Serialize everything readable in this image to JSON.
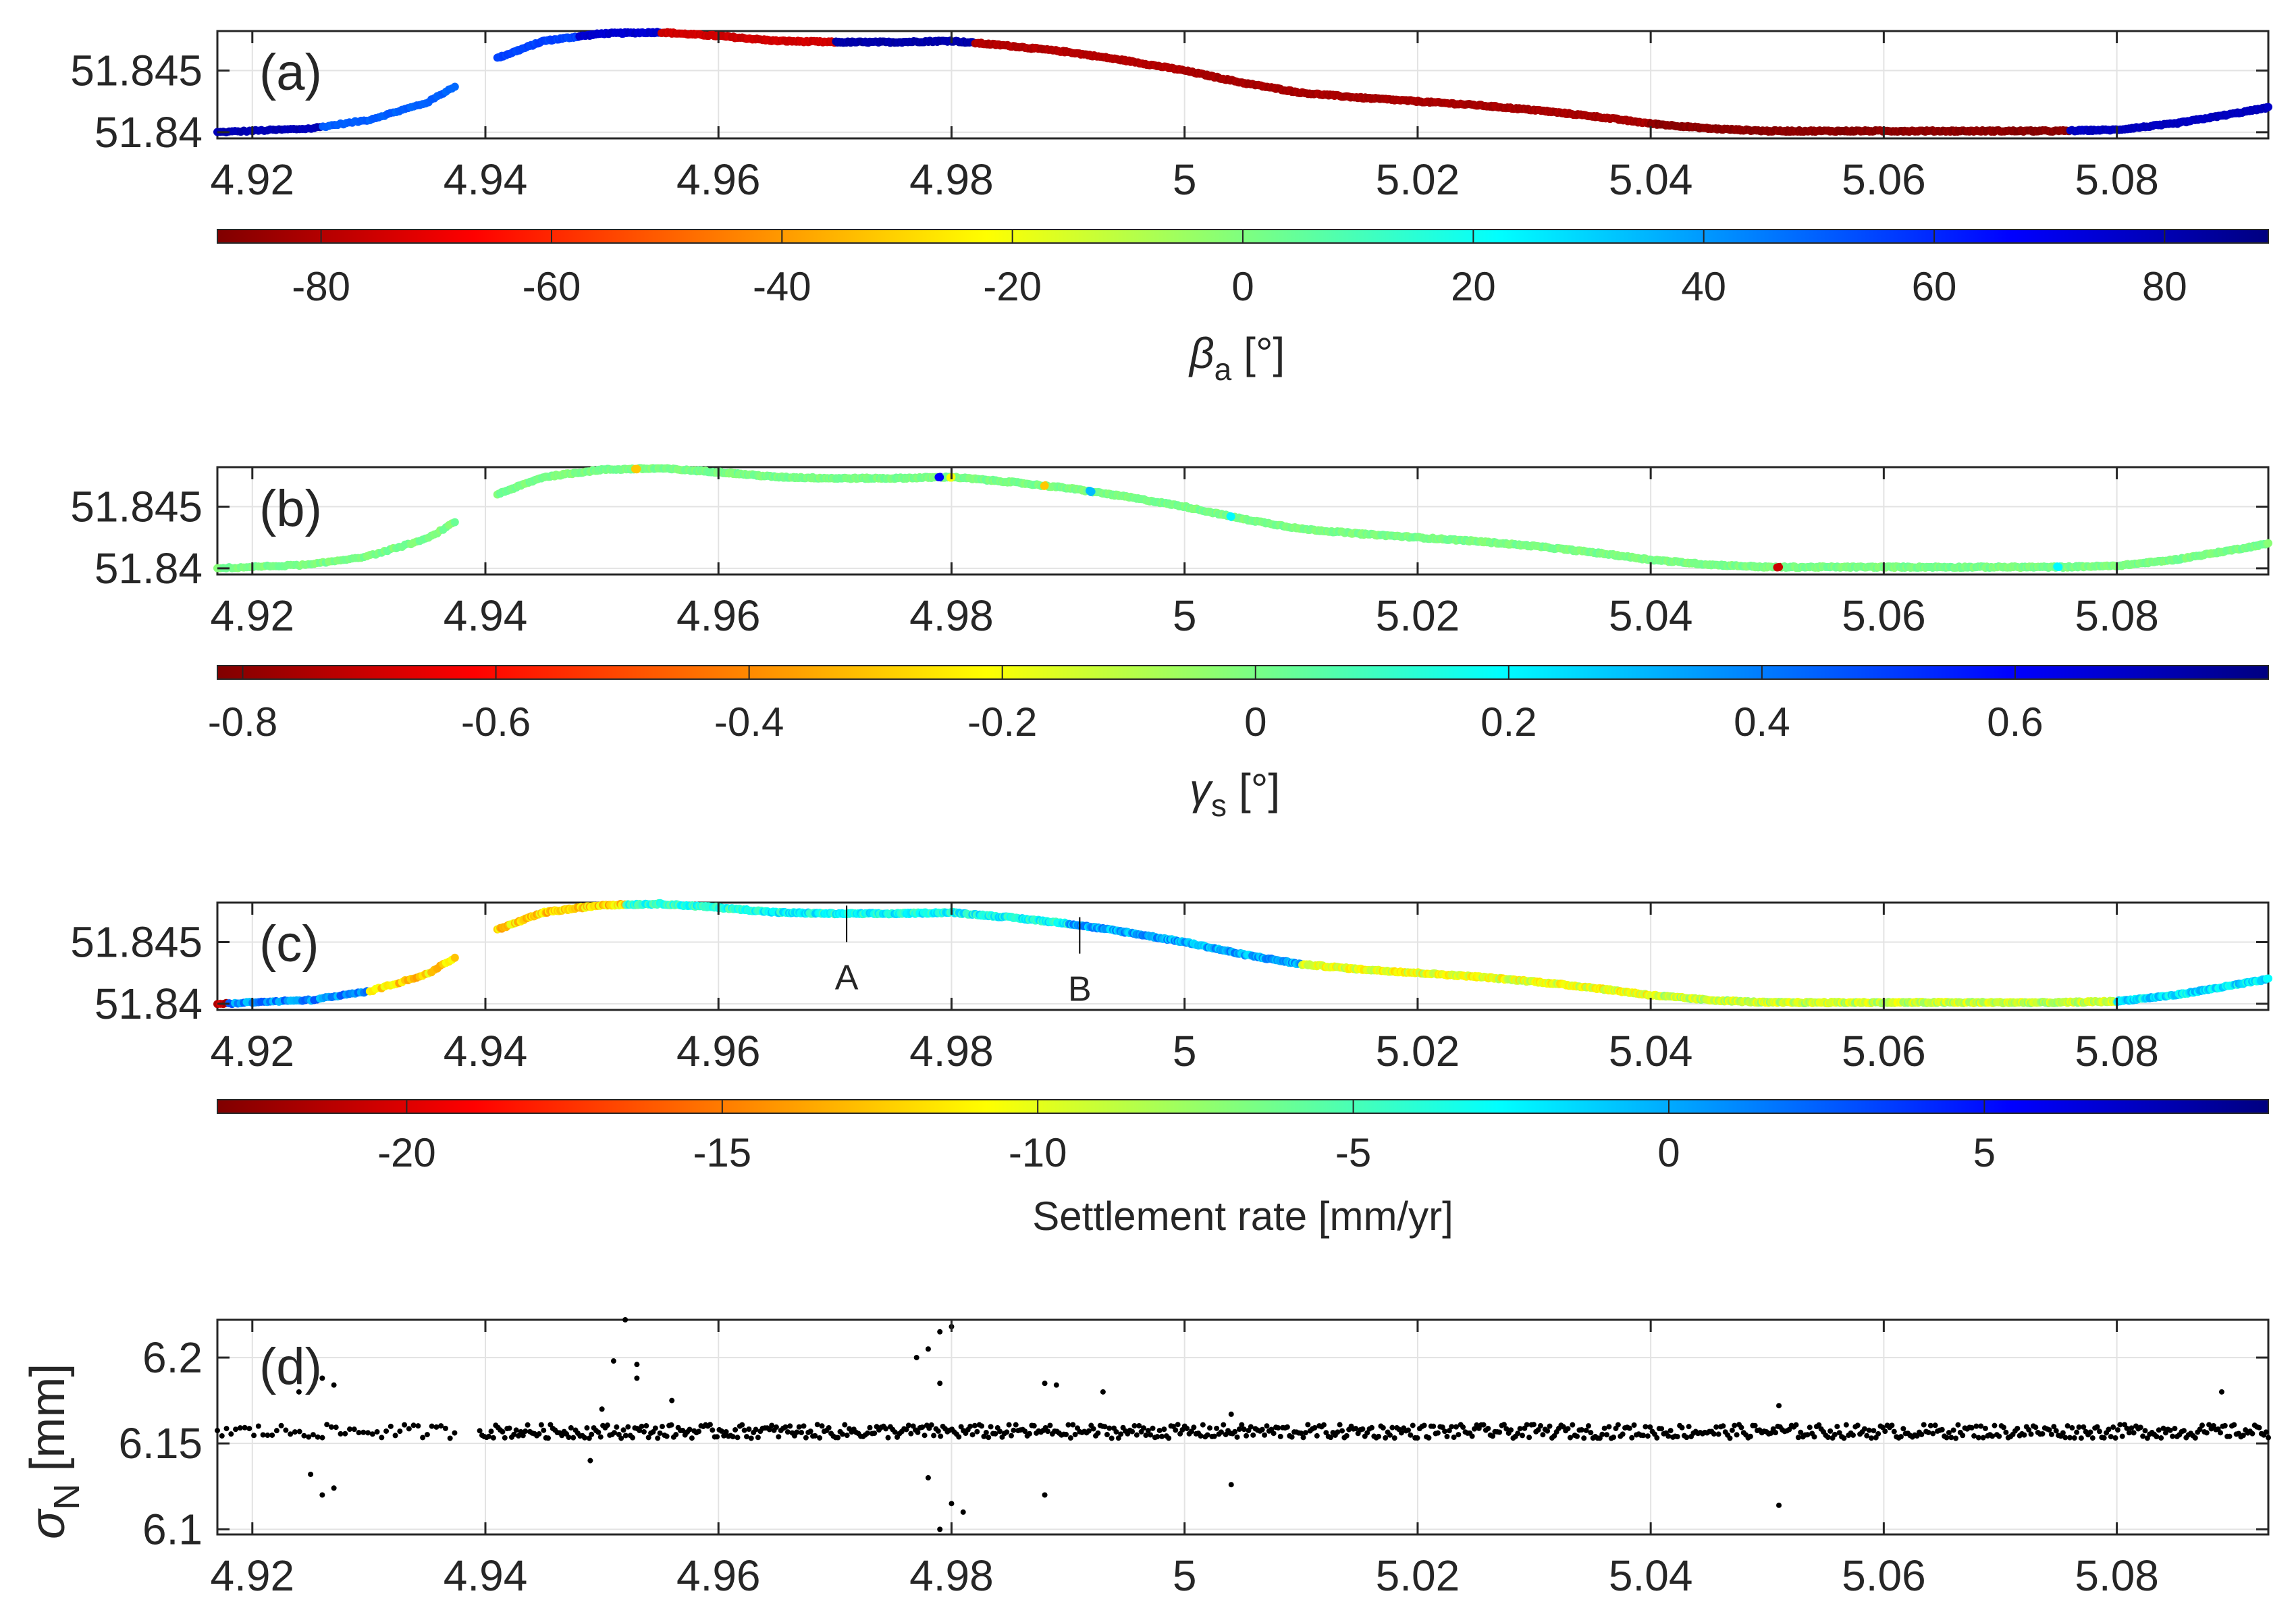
{
  "chart_data": [
    {
      "type": "scatter",
      "panel_label": "(a)",
      "xlim": [
        4.917,
        5.093
      ],
      "ylim": [
        51.8395,
        51.8482
      ],
      "x_ticks": [
        "4.92",
        "4.94",
        "4.96",
        "4.98",
        "5",
        "5.02",
        "5.04",
        "5.06",
        "5.08"
      ],
      "y_ticks": [
        "51.845",
        "51.84"
      ],
      "y_tick_values": [
        51.845,
        51.84
      ],
      "x_tick_values": [
        4.92,
        4.94,
        4.96,
        4.98,
        5.0,
        5.02,
        5.04,
        5.06,
        5.08
      ],
      "colorbar": {
        "label": "β",
        "label_sub": "a",
        "label_unit": "[°]",
        "range": [
          -89,
          89
        ],
        "ticks": [
          "-80",
          "-60",
          "-40",
          "-20",
          "0",
          "20",
          "40",
          "60",
          "80"
        ],
        "tick_values": [
          -80,
          -60,
          -40,
          -20,
          0,
          20,
          40,
          60,
          80
        ],
        "colormap": "jet-reversed"
      },
      "track": {
        "x": [
          4.917,
          4.925,
          4.93,
          4.935,
          4.9375,
          4.941,
          4.945,
          4.95,
          4.955,
          4.96,
          4.965,
          4.97,
          4.975,
          4.98,
          4.985,
          4.99,
          4.995,
          5.0,
          5.005,
          5.01,
          5.015,
          5.02,
          5.025,
          5.03,
          5.035,
          5.04,
          5.045,
          5.05,
          5.055,
          5.06,
          5.065,
          5.07,
          5.075,
          5.08,
          5.085,
          5.09,
          5.093
        ],
        "y": [
          51.84,
          51.8403,
          51.841,
          51.8424,
          51.8438,
          51.846,
          51.8474,
          51.848,
          51.8481,
          51.8478,
          51.8474,
          51.8473,
          51.8473,
          51.8474,
          51.847,
          51.8465,
          51.8458,
          51.845,
          51.844,
          51.8432,
          51.8428,
          51.8425,
          51.8422,
          51.8418,
          51.8413,
          51.8407,
          51.8403,
          51.8401,
          51.8401,
          51.8401,
          51.8401,
          51.8401,
          51.8401,
          51.8402,
          51.8407,
          51.8415,
          51.842
        ],
        "gap": [
          4.9375,
          4.941
        ]
      },
      "color_segments": [
        {
          "x_from": 4.917,
          "x_to": 4.926,
          "value": 80
        },
        {
          "x_from": 4.926,
          "x_to": 4.9375,
          "value": 50
        },
        {
          "x_from": 4.941,
          "x_to": 4.948,
          "value": 55
        },
        {
          "x_from": 4.948,
          "x_to": 4.955,
          "value": 75
        },
        {
          "x_from": 4.955,
          "x_to": 4.97,
          "value": -75
        },
        {
          "x_from": 4.97,
          "x_to": 4.982,
          "value": 82
        },
        {
          "x_from": 4.982,
          "x_to": 5.0,
          "value": -80
        },
        {
          "x_from": 5.0,
          "x_to": 5.04,
          "value": -82
        },
        {
          "x_from": 5.04,
          "x_to": 5.076,
          "value": -87
        },
        {
          "x_from": 5.076,
          "x_to": 5.093,
          "value": 78
        }
      ]
    },
    {
      "type": "scatter",
      "panel_label": "(b)",
      "xlim": [
        4.917,
        5.093
      ],
      "ylim": [
        51.8395,
        51.8482
      ],
      "x_ticks": [
        "4.92",
        "4.94",
        "4.96",
        "4.98",
        "5",
        "5.02",
        "5.04",
        "5.06",
        "5.08"
      ],
      "y_ticks": [
        "51.845",
        "51.84"
      ],
      "y_tick_values": [
        51.845,
        51.84
      ],
      "x_tick_values": [
        4.92,
        4.94,
        4.96,
        4.98,
        5.0,
        5.02,
        5.04,
        5.06,
        5.08
      ],
      "colorbar": {
        "label": "γ",
        "label_sub": "s",
        "label_unit": "[°]",
        "range": [
          -0.82,
          0.8
        ],
        "ticks": [
          "-0.8",
          "-0.6",
          "-0.4",
          "-0.2",
          "0",
          "0.2",
          "0.4",
          "0.6"
        ],
        "tick_values": [
          -0.8,
          -0.6,
          -0.4,
          -0.2,
          0,
          0.2,
          0.4,
          0.6
        ],
        "colormap": "jet-reversed"
      },
      "base_value": 0.0,
      "outliers": [
        {
          "x": 4.953,
          "value": -0.3
        },
        {
          "x": 4.979,
          "value": 0.6
        },
        {
          "x": 4.98,
          "value": -0.2
        },
        {
          "x": 4.988,
          "value": -0.3
        },
        {
          "x": 4.992,
          "value": 0.3
        },
        {
          "x": 5.004,
          "value": 0.2
        },
        {
          "x": 5.051,
          "value": -0.7
        },
        {
          "x": 5.075,
          "value": 0.2
        }
      ]
    },
    {
      "type": "scatter",
      "panel_label": "(c)",
      "xlim": [
        4.917,
        5.093
      ],
      "ylim": [
        51.8395,
        51.8482
      ],
      "x_ticks": [
        "4.92",
        "4.94",
        "4.96",
        "4.98",
        "5",
        "5.02",
        "5.04",
        "5.06",
        "5.08"
      ],
      "y_ticks": [
        "51.845",
        "51.84"
      ],
      "y_tick_values": [
        51.845,
        51.84
      ],
      "x_tick_values": [
        4.92,
        4.94,
        4.96,
        4.98,
        5.0,
        5.02,
        5.04,
        5.06,
        5.08
      ],
      "colorbar": {
        "label": "Settlement rate [mm/yr]",
        "range": [
          -23,
          9.5
        ],
        "ticks": [
          "-20",
          "-15",
          "-10",
          "-5",
          "0",
          "5"
        ],
        "tick_values": [
          -20,
          -15,
          -10,
          -5,
          0,
          5
        ],
        "colormap": "jet-reversed"
      },
      "annotations": [
        {
          "text": "A",
          "x": 4.971
        },
        {
          "text": "B",
          "x": 4.991
        }
      ],
      "color_segments": [
        {
          "x_from": 4.917,
          "x_to": 4.918,
          "value": -20
        },
        {
          "x_from": 4.918,
          "x_to": 4.93,
          "value": 1
        },
        {
          "x_from": 4.93,
          "x_to": 4.9375,
          "value": -12
        },
        {
          "x_from": 4.941,
          "x_to": 4.952,
          "value": -12
        },
        {
          "x_from": 4.952,
          "x_to": 4.962,
          "value": -4
        },
        {
          "x_from": 4.962,
          "x_to": 4.99,
          "value": -3
        },
        {
          "x_from": 4.99,
          "x_to": 5.01,
          "value": 0
        },
        {
          "x_from": 5.01,
          "x_to": 5.04,
          "value": -10
        },
        {
          "x_from": 5.04,
          "x_to": 5.08,
          "value": -9
        },
        {
          "x_from": 5.08,
          "x_to": 5.093,
          "value": -2
        }
      ]
    },
    {
      "type": "scatter",
      "panel_label": "(d)",
      "xlim": [
        4.917,
        5.093
      ],
      "ylim": [
        6.097,
        6.222
      ],
      "x_ticks": [
        "4.92",
        "4.94",
        "4.96",
        "4.98",
        "5",
        "5.02",
        "5.04",
        "5.06",
        "5.08"
      ],
      "y_ticks": [
        "6.2",
        "6.15",
        "6.1"
      ],
      "y_tick_values": [
        6.2,
        6.15,
        6.1
      ],
      "x_tick_values": [
        4.92,
        4.94,
        4.96,
        4.98,
        5.0,
        5.02,
        5.04,
        5.06,
        5.08
      ],
      "ylabel": "σ",
      "ylabel_sub": "N",
      "ylabel_unit": "[mm]",
      "baseline": 6.157,
      "gap": [
        4.9375,
        4.9395
      ],
      "points_outliers": [
        {
          "x": 4.924,
          "y": 6.18
        },
        {
          "x": 4.926,
          "y": 6.188
        },
        {
          "x": 4.927,
          "y": 6.184
        },
        {
          "x": 4.926,
          "y": 6.12
        },
        {
          "x": 4.927,
          "y": 6.124
        },
        {
          "x": 4.925,
          "y": 6.132
        },
        {
          "x": 4.951,
          "y": 6.198
        },
        {
          "x": 4.952,
          "y": 6.222
        },
        {
          "x": 4.953,
          "y": 6.196
        },
        {
          "x": 4.953,
          "y": 6.188
        },
        {
          "x": 4.95,
          "y": 6.17
        },
        {
          "x": 4.949,
          "y": 6.14
        },
        {
          "x": 4.956,
          "y": 6.175
        },
        {
          "x": 4.977,
          "y": 6.2
        },
        {
          "x": 4.978,
          "y": 6.205
        },
        {
          "x": 4.979,
          "y": 6.215
        },
        {
          "x": 4.98,
          "y": 6.218
        },
        {
          "x": 4.979,
          "y": 6.185
        },
        {
          "x": 4.981,
          "y": 6.11
        },
        {
          "x": 4.979,
          "y": 6.1
        },
        {
          "x": 4.98,
          "y": 6.115
        },
        {
          "x": 4.978,
          "y": 6.13
        },
        {
          "x": 4.988,
          "y": 6.185
        },
        {
          "x": 4.989,
          "y": 6.184
        },
        {
          "x": 4.988,
          "y": 6.12
        },
        {
          "x": 4.993,
          "y": 6.18
        },
        {
          "x": 5.004,
          "y": 6.167
        },
        {
          "x": 5.004,
          "y": 6.126
        },
        {
          "x": 5.051,
          "y": 6.172
        },
        {
          "x": 5.051,
          "y": 6.114
        },
        {
          "x": 5.089,
          "y": 6.18
        }
      ]
    }
  ]
}
